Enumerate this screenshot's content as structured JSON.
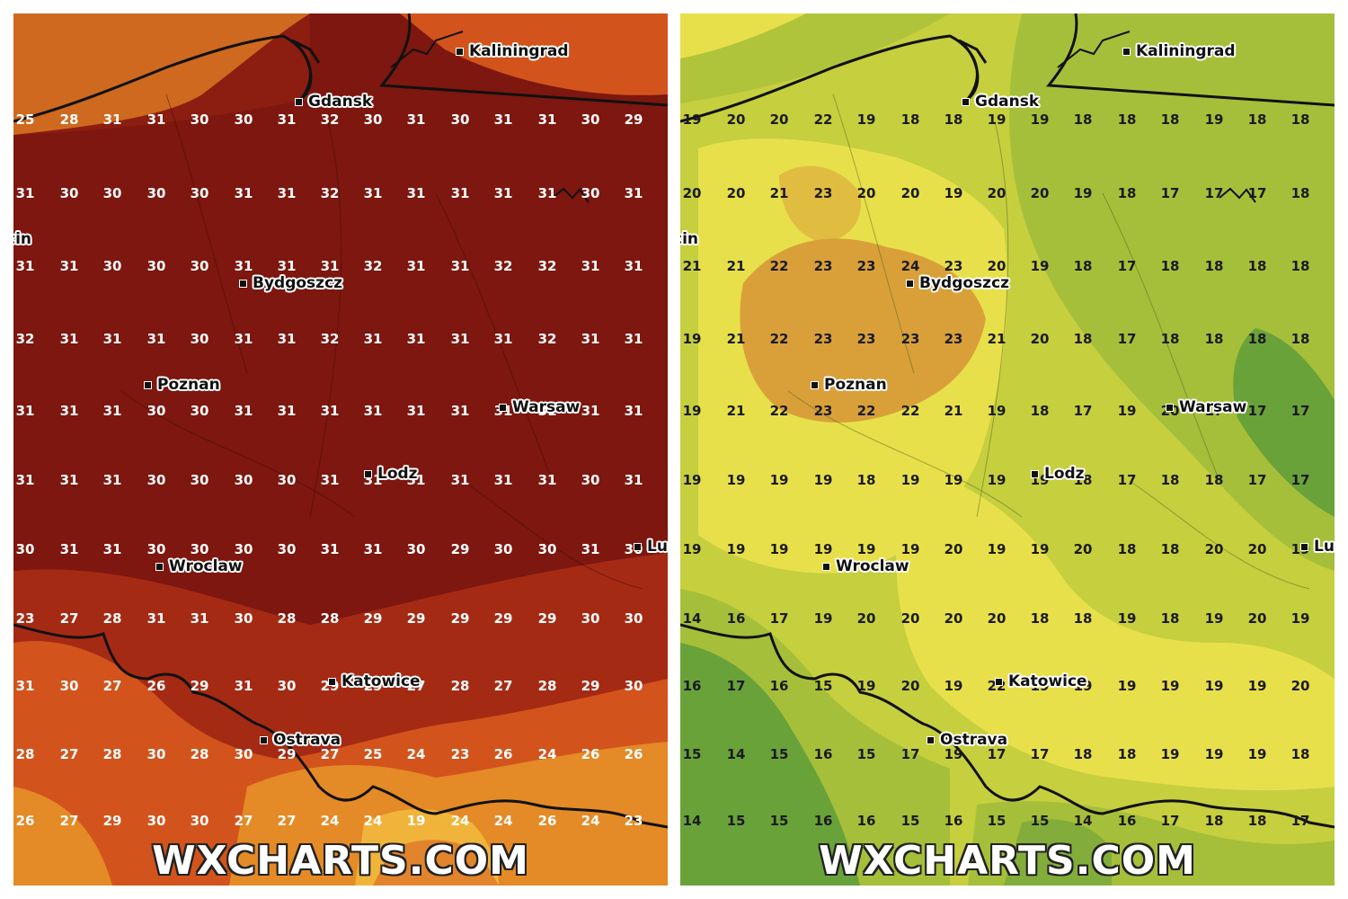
{
  "watermark": "WXCHARTS.COM",
  "panels": [
    {
      "id": "left",
      "palette": {
        "base": "#7d170f",
        "warm": "#a52a14",
        "orange": "#d2541c",
        "amber": "#e48a26",
        "yellow": "#f0b43a"
      },
      "grid": [
        [
          25,
          28,
          31,
          31,
          30,
          30,
          31,
          32,
          30,
          31,
          30,
          31,
          31,
          30,
          29
        ],
        [
          31,
          30,
          30,
          30,
          30,
          31,
          31,
          32,
          31,
          31,
          31,
          31,
          31,
          30,
          31
        ],
        [
          31,
          31,
          30,
          30,
          30,
          31,
          31,
          31,
          32,
          31,
          31,
          32,
          32,
          31,
          31
        ],
        [
          32,
          31,
          31,
          31,
          30,
          31,
          31,
          32,
          31,
          31,
          31,
          31,
          32,
          31,
          31
        ],
        [
          31,
          31,
          31,
          30,
          30,
          31,
          31,
          31,
          31,
          31,
          31,
          31,
          31,
          31,
          31
        ],
        [
          31,
          31,
          31,
          30,
          30,
          30,
          30,
          31,
          31,
          31,
          31,
          31,
          31,
          30,
          31
        ],
        [
          30,
          31,
          31,
          30,
          30,
          30,
          30,
          31,
          31,
          30,
          29,
          30,
          30,
          31,
          30
        ],
        [
          23,
          27,
          28,
          31,
          31,
          30,
          28,
          28,
          29,
          29,
          29,
          29,
          29,
          30,
          30
        ],
        [
          31,
          30,
          27,
          26,
          29,
          31,
          30,
          29,
          29,
          27,
          28,
          27,
          28,
          29,
          30
        ],
        [
          28,
          27,
          28,
          30,
          28,
          30,
          29,
          27,
          25,
          24,
          23,
          26,
          24,
          26,
          26
        ],
        [
          26,
          27,
          29,
          30,
          30,
          27,
          27,
          24,
          24,
          19,
          24,
          24,
          26,
          24,
          23
        ]
      ],
      "cities": [
        "Kaliningrad",
        "Gdansk",
        "cin",
        "Bydgoszcz",
        "Poznan",
        "Warsaw",
        "Lodz",
        "Wroclaw",
        "Katowice",
        "Ostrava",
        "Lu"
      ]
    },
    {
      "id": "right",
      "palette": {
        "base": "#c6cf3e",
        "yellow": "#e8e04a",
        "orange": "#d9a03a",
        "green": "#a6bf3a",
        "dark": "#6aa23a"
      },
      "grid": [
        [
          19,
          20,
          20,
          22,
          19,
          18,
          18,
          19,
          19,
          18,
          18,
          18,
          19,
          18,
          18
        ],
        [
          20,
          20,
          21,
          23,
          20,
          20,
          19,
          20,
          20,
          19,
          18,
          17,
          17,
          17,
          18
        ],
        [
          21,
          21,
          22,
          23,
          23,
          24,
          23,
          20,
          19,
          18,
          17,
          18,
          18,
          18,
          18
        ],
        [
          19,
          21,
          22,
          23,
          23,
          23,
          23,
          21,
          20,
          18,
          17,
          18,
          18,
          18,
          18
        ],
        [
          19,
          21,
          22,
          23,
          22,
          22,
          21,
          19,
          18,
          17,
          19,
          20,
          17,
          17,
          17
        ],
        [
          19,
          19,
          19,
          19,
          18,
          19,
          19,
          19,
          19,
          18,
          17,
          18,
          18,
          17,
          17
        ],
        [
          19,
          19,
          19,
          19,
          19,
          19,
          20,
          19,
          19,
          20,
          18,
          18,
          20,
          20,
          19
        ],
        [
          14,
          16,
          17,
          19,
          20,
          20,
          20,
          20,
          18,
          18,
          19,
          18,
          19,
          20,
          19
        ],
        [
          16,
          17,
          16,
          15,
          19,
          20,
          19,
          22,
          19,
          19,
          19,
          19,
          19,
          19,
          20
        ],
        [
          15,
          14,
          15,
          16,
          15,
          17,
          19,
          17,
          17,
          18,
          18,
          19,
          19,
          19,
          18
        ],
        [
          14,
          15,
          15,
          16,
          16,
          15,
          16,
          15,
          15,
          14,
          16,
          17,
          18,
          18,
          17
        ]
      ],
      "cities": [
        "Kaliningrad",
        "Gdansk",
        "cin",
        "Bydgoszcz",
        "Poznan",
        "Warsaw",
        "Lodz",
        "Wroclaw",
        "Katowice",
        "Ostrava",
        "Lu"
      ]
    }
  ]
}
